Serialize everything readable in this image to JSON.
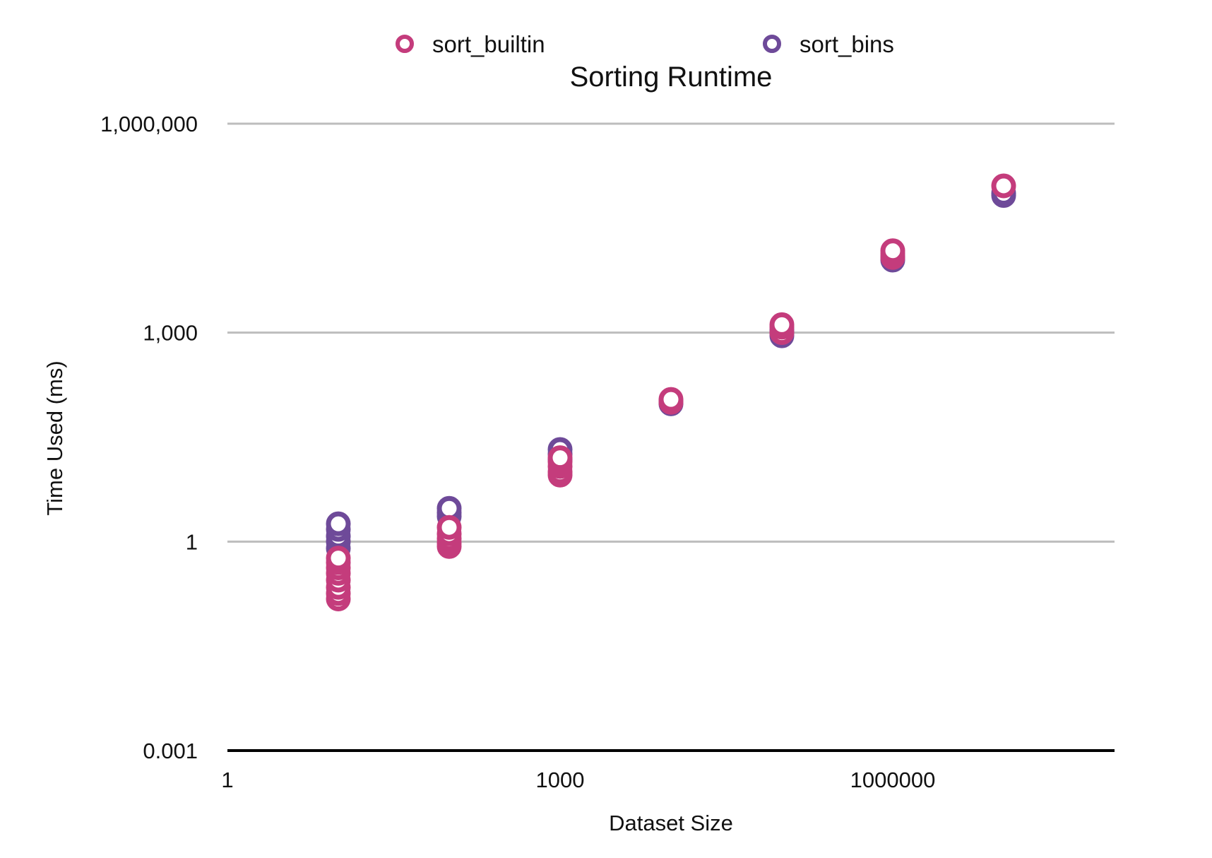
{
  "chart_data": {
    "type": "scatter",
    "title": "Sorting Runtime",
    "xlabel": "Dataset Size",
    "ylabel": "Time Used (ms)",
    "x_scale": "log",
    "y_scale": "log",
    "xlim": [
      1,
      100000000
    ],
    "ylim": [
      0.001,
      1000000
    ],
    "x_ticks": [
      {
        "value": 1,
        "label": "1"
      },
      {
        "value": 1000,
        "label": "1000"
      },
      {
        "value": 1000000,
        "label": "1000000"
      }
    ],
    "y_ticks": [
      {
        "value": 0.001,
        "label": "0.001"
      },
      {
        "value": 1,
        "label": "1"
      },
      {
        "value": 1000,
        "label": "1,000"
      },
      {
        "value": 1000000,
        "label": "1,000,000"
      }
    ],
    "grid": true,
    "legend": "top-center",
    "series": [
      {
        "name": "sort_builtin",
        "color": "#c43c7c",
        "points": [
          {
            "x": 10,
            "y": 0.15
          },
          {
            "x": 10,
            "y": 0.18
          },
          {
            "x": 10,
            "y": 0.22
          },
          {
            "x": 10,
            "y": 0.28
          },
          {
            "x": 10,
            "y": 0.35
          },
          {
            "x": 10,
            "y": 0.42
          },
          {
            "x": 10,
            "y": 0.5
          },
          {
            "x": 10,
            "y": 0.58
          },
          {
            "x": 100,
            "y": 0.85
          },
          {
            "x": 100,
            "y": 0.95
          },
          {
            "x": 100,
            "y": 1.1
          },
          {
            "x": 100,
            "y": 1.3
          },
          {
            "x": 100,
            "y": 1.6
          },
          {
            "x": 1000,
            "y": 9
          },
          {
            "x": 1000,
            "y": 10
          },
          {
            "x": 1000,
            "y": 12
          },
          {
            "x": 1000,
            "y": 14
          },
          {
            "x": 1000,
            "y": 16
          },
          {
            "x": 10000,
            "y": 100
          },
          {
            "x": 10000,
            "y": 105
          },
          {
            "x": 10000,
            "y": 110
          },
          {
            "x": 100000,
            "y": 1000
          },
          {
            "x": 100000,
            "y": 1200
          },
          {
            "x": 100000,
            "y": 1300
          },
          {
            "x": 1000000,
            "y": 12000
          },
          {
            "x": 1000000,
            "y": 13500
          },
          {
            "x": 1000000,
            "y": 15000
          },
          {
            "x": 10000000,
            "y": 128000
          }
        ]
      },
      {
        "name": "sort_bins",
        "color": "#6e4a99",
        "points": [
          {
            "x": 10,
            "y": 0.8
          },
          {
            "x": 10,
            "y": 1.0
          },
          {
            "x": 10,
            "y": 1.2
          },
          {
            "x": 10,
            "y": 1.5
          },
          {
            "x": 10,
            "y": 1.8
          },
          {
            "x": 100,
            "y": 2.3
          },
          {
            "x": 100,
            "y": 2.6
          },
          {
            "x": 100,
            "y": 3.0
          },
          {
            "x": 1000,
            "y": 15
          },
          {
            "x": 1000,
            "y": 18
          },
          {
            "x": 1000,
            "y": 21
          },
          {
            "x": 10000,
            "y": 95
          },
          {
            "x": 10000,
            "y": 100
          },
          {
            "x": 100000,
            "y": 900
          },
          {
            "x": 100000,
            "y": 1000
          },
          {
            "x": 100000,
            "y": 1100
          },
          {
            "x": 1000000,
            "y": 11000
          },
          {
            "x": 1000000,
            "y": 12000
          },
          {
            "x": 10000000,
            "y": 93000
          },
          {
            "x": 10000000,
            "y": 100000
          }
        ]
      }
    ]
  }
}
